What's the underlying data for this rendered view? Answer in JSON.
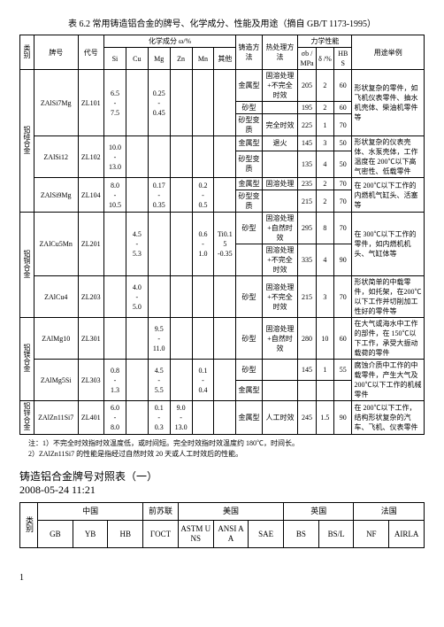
{
  "title": "表 6.2 常用铸造铝合金的牌号、化学成分、性能及用途（摘自 GB/T 1173-1995）",
  "headers": {
    "cat": "类别",
    "grade": "牌号",
    "code": "代号",
    "chem": "化学成分 ω/%",
    "chemCols": [
      "Si",
      "Cu",
      "Mg",
      "Zn",
      "Mn",
      "其他"
    ],
    "castMethod": "铸造方法",
    "heat": "热处理方法",
    "mech": "力学性能",
    "mechCols": [
      "σb /MPa",
      "δ /%",
      "HBS"
    ],
    "use": "用途举例"
  },
  "categories": [
    "铝硅合金",
    "铝铜合金",
    "铝镁合金",
    "铝锌合金"
  ],
  "rows": [
    {
      "cat": 0,
      "grade": "ZAlSi7Mg",
      "code": "ZL101",
      "si": "6.5\n-\n7.5",
      "cu": "",
      "mg": "0.25\n-\n0.45",
      "zn": "",
      "mn": "",
      "other": "",
      "lines": [
        {
          "method": "金属型",
          "heat": "固溶处理+不完全时效",
          "sb": "205",
          "d": "2",
          "hbs": "60",
          "use": ""
        },
        {
          "method": "砂型",
          "heat": "",
          "sb": "195",
          "d": "2",
          "hbs": "60",
          "use": "形状复杂的零件，如飞机仪表零件、抽水机壳体、柴油机零件等"
        },
        {
          "method": "砂型变质",
          "heat": "完全时效",
          "sb": "225",
          "d": "1",
          "hbs": "70",
          "use": ""
        }
      ]
    },
    {
      "cat": 0,
      "grade": "ZAlSi12",
      "code": "ZL102",
      "si": "10.0\n-\n13.0",
      "cu": "",
      "mg": "",
      "zn": "",
      "mn": "",
      "other": "",
      "lines": [
        {
          "method": "金属型",
          "heat": "退火",
          "sb": "145",
          "d": "3",
          "hbs": "50",
          "use": "形状复杂的仪表壳体、水泵壳体，工作温度在 200℃以下高气密性、低载零件"
        },
        {
          "method": "砂型变质",
          "heat": "",
          "sb": "135",
          "d": "4",
          "hbs": "50",
          "use": ""
        }
      ]
    },
    {
      "cat": 0,
      "grade": "ZAlSi9Mg",
      "code": "ZL104",
      "si": "8.0\n-\n10.5",
      "cu": "",
      "mg": "0.17\n-\n0.35",
      "zn": "",
      "mn": "0.2\n-\n0.5",
      "other": "",
      "lines": [
        {
          "method": "金属型",
          "heat": "固溶处理",
          "sb": "235",
          "d": "2",
          "hbs": "70",
          "use": "在 200℃以下工作的内燃机气缸头、活塞等"
        },
        {
          "method": "砂型变质",
          "heat": "",
          "sb": "215",
          "d": "2",
          "hbs": "70",
          "use": ""
        }
      ]
    },
    {
      "cat": 1,
      "grade": "ZAlCu5Mn",
      "code": "ZL201",
      "si": "",
      "cu": "4.5\n-\n5.3",
      "mg": "",
      "zn": "",
      "mn": "0.6\n-\n1.0",
      "other": "Ti0.15\n-0.35",
      "lines": [
        {
          "method": "砂型",
          "heat": "固溶处理+自然时效",
          "sb": "295",
          "d": "8",
          "hbs": "70",
          "use": "在 300℃以下工作的零件，如内燃机机头、气缸体等"
        },
        {
          "method": "",
          "heat": "固溶处理+不完全时效",
          "sb": "335",
          "d": "4",
          "hbs": "90",
          "use": ""
        }
      ]
    },
    {
      "cat": 1,
      "grade": "ZAlCu4",
      "code": "ZL203",
      "si": "",
      "cu": "4.0\n-\n5.0",
      "mg": "",
      "zn": "",
      "mn": "",
      "other": "",
      "lines": [
        {
          "method": "砂型",
          "heat": "固溶处理+不完全时效",
          "sb": "215",
          "d": "3",
          "hbs": "70",
          "use": "形状简单的中载零件，如托架，在200℃以下工作并切削加工性好的零件等"
        }
      ]
    },
    {
      "cat": 2,
      "grade": "ZAlMg10",
      "code": "ZL301",
      "si": "",
      "cu": "",
      "mg": "9.5\n-\n11.0",
      "zn": "",
      "mn": "",
      "other": "",
      "lines": [
        {
          "method": "砂型",
          "heat": "固溶处理+自然时效",
          "sb": "280",
          "d": "10",
          "hbs": "60",
          "use": "在大气或海水中工作的部件，在 150℃以下工作，承受大振动载荷的零件"
        }
      ]
    },
    {
      "cat": 2,
      "grade": "ZAlMg5Si",
      "code": "ZL303",
      "si": "0.8\n-\n1.3",
      "cu": "",
      "mg": "4.5\n-\n5.5",
      "zn": "",
      "mn": "0.1\n-\n0.4",
      "other": "",
      "lines": [
        {
          "method": "砂型",
          "heat": "",
          "sb": "145",
          "d": "1",
          "hbs": "55",
          "use": "腐蚀介质中工作的中载零件，产生大气及 200℃以下工作的机械零件"
        },
        {
          "method": "金属型",
          "heat": "",
          "sb": "",
          "d": "",
          "hbs": "",
          "use": ""
        }
      ]
    },
    {
      "cat": 3,
      "grade": "ZAlZn11Si7",
      "code": "ZL401",
      "si": "6.0\n-\n8.0",
      "cu": "",
      "mg": "0.1\n-\n0.3",
      "zn": "9.0\n-\n13.0",
      "mn": "",
      "other": "",
      "lines": [
        {
          "method": "金属型",
          "heat": "人工时效",
          "sb": "245",
          "d": "1.5",
          "hbs": "90",
          "use": "在 200℃以下工作，结构形状复杂的汽车、飞机、仪表零件"
        }
      ]
    }
  ],
  "notes": [
    "注：1）不完全时效指时效温度低，或时间短。完全时效指时效温度约 180℃，时间长。",
    "2）ZAlZn11Si7 的性能是指经过自然时效 20 天或人工时效后的性能。"
  ],
  "subTitle": "铸造铝合金牌号对照表（一）",
  "date": "2008-05-24 11:21",
  "t2": {
    "cat": "类别",
    "countries": [
      "中国",
      "前苏联",
      "美国",
      "英国",
      "法国"
    ],
    "sub": [
      "GB",
      "YB",
      "HB",
      "ГOCT",
      "ASTM\nUNS",
      "ANSI\nAA",
      "SAE",
      "BS",
      "BS/L",
      "NF",
      "AIRLA"
    ]
  },
  "pagenum": "1"
}
